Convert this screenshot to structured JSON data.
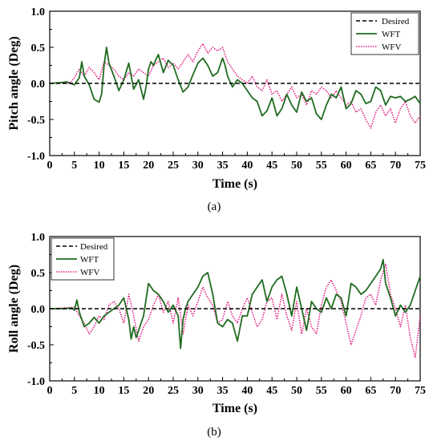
{
  "chart_data": [
    {
      "type": "line",
      "caption": "(a)",
      "xlabel": "Time (s)",
      "ylabel": "Pitch angle (Deg)",
      "xlim": [
        0,
        75
      ],
      "ylim": [
        -1.0,
        1.0
      ],
      "xticks": [
        "0",
        "5",
        "10",
        "15",
        "20",
        "25",
        "30",
        "35",
        "40",
        "45",
        "50",
        "55",
        "60",
        "65",
        "70",
        "75"
      ],
      "yticks": [
        "1.0",
        "0.5",
        "0.0",
        "-0.5",
        "-1.0"
      ],
      "grid": false,
      "legend_position": "top-right",
      "series": [
        {
          "name": "Desired",
          "color": "#000000",
          "style": "dashed",
          "x": [
            0,
            75
          ],
          "y": [
            0,
            0
          ]
        },
        {
          "name": "WFT",
          "color": "#1f6b1f",
          "style": "solid",
          "x": [
            0,
            2,
            3.5,
            5,
            6,
            6.5,
            7,
            8,
            9,
            10,
            10.5,
            11,
            11.5,
            12,
            13,
            14,
            15,
            16,
            17,
            18,
            19,
            19.5,
            20,
            20.5,
            21,
            21.5,
            22,
            23,
            24,
            25,
            26,
            27,
            28,
            29,
            30,
            31,
            32,
            33,
            34,
            35,
            35.5,
            36,
            37,
            38,
            39,
            40,
            41,
            42,
            43,
            44,
            45,
            46,
            47,
            48,
            49,
            50,
            51,
            52,
            53,
            54,
            55,
            56,
            57,
            58,
            59,
            60,
            61,
            62,
            63,
            64,
            65,
            66,
            67,
            68,
            69,
            70,
            71,
            72,
            73,
            74,
            75
          ],
          "y": [
            0,
            0.01,
            0.02,
            -0.02,
            0.08,
            0.3,
            0.1,
            -0.02,
            -0.22,
            -0.26,
            -0.15,
            0.25,
            0.5,
            0.28,
            0.1,
            -0.1,
            0.05,
            0.28,
            -0.08,
            0.05,
            -0.22,
            -0.05,
            0.2,
            0.3,
            0.25,
            0.33,
            0.4,
            0.15,
            0.32,
            0.25,
            0.05,
            -0.12,
            -0.05,
            0.12,
            0.28,
            0.35,
            0.25,
            0.1,
            0.15,
            0.35,
            0.25,
            0.1,
            -0.05,
            0.05,
            0.0,
            -0.1,
            -0.2,
            -0.25,
            -0.45,
            -0.38,
            -0.2,
            -0.45,
            -0.35,
            -0.15,
            -0.3,
            -0.4,
            -0.12,
            -0.25,
            -0.2,
            -0.42,
            -0.5,
            -0.3,
            -0.15,
            -0.2,
            -0.05,
            -0.35,
            -0.28,
            -0.1,
            -0.15,
            -0.28,
            -0.25,
            -0.05,
            -0.1,
            -0.3,
            -0.18,
            -0.2,
            -0.18,
            -0.25,
            -0.22,
            -0.18,
            -0.28
          ]
        },
        {
          "name": "WFV",
          "color": "#e0187e",
          "style": "dotted",
          "x": [
            0,
            2,
            4,
            5,
            6,
            7,
            8,
            9,
            10,
            11,
            12,
            13,
            14,
            15,
            16,
            17,
            18,
            19,
            20,
            21,
            22,
            23,
            24,
            25,
            26,
            27,
            28,
            29,
            30,
            31,
            32,
            33,
            34,
            35,
            36,
            37,
            38,
            39,
            40,
            41,
            42,
            43,
            44,
            45,
            46,
            47,
            48,
            49,
            50,
            51,
            52,
            53,
            54,
            55,
            56,
            57,
            58,
            59,
            60,
            61,
            62,
            63,
            64,
            65,
            66,
            67,
            68,
            69,
            70,
            71,
            72,
            73,
            74,
            75
          ],
          "y": [
            0,
            0.01,
            0.0,
            0.08,
            0.2,
            0.1,
            0.22,
            0.15,
            0.05,
            0.3,
            0.25,
            0.2,
            0.1,
            0.05,
            0.15,
            0.1,
            0.2,
            0.15,
            0.1,
            0.25,
            0.3,
            0.35,
            0.22,
            0.28,
            0.2,
            0.3,
            0.4,
            0.3,
            0.45,
            0.55,
            0.42,
            0.5,
            0.45,
            0.5,
            0.3,
            0.2,
            0.1,
            0.05,
            0.0,
            0.1,
            -0.05,
            -0.1,
            0.05,
            -0.15,
            -0.1,
            -0.25,
            -0.15,
            -0.05,
            -0.2,
            -0.15,
            -0.3,
            -0.1,
            -0.15,
            -0.05,
            -0.1,
            -0.2,
            -0.1,
            -0.2,
            -0.3,
            -0.25,
            -0.4,
            -0.35,
            -0.5,
            -0.62,
            -0.4,
            -0.3,
            -0.45,
            -0.35,
            -0.55,
            -0.35,
            -0.25,
            -0.45,
            -0.55,
            -0.45
          ]
        }
      ]
    },
    {
      "type": "line",
      "caption": "(b)",
      "xlabel": "Time (s)",
      "ylabel": "Roll angle (Deg)",
      "xlim": [
        0,
        75
      ],
      "ylim": [
        -1.0,
        1.0
      ],
      "xticks": [
        "0",
        "5",
        "10",
        "15",
        "20",
        "25",
        "30",
        "35",
        "40",
        "45",
        "50",
        "55",
        "60",
        "65",
        "70",
        "75"
      ],
      "yticks": [
        "1.0",
        "0.5",
        "0.0",
        "-0.5",
        "-1.0"
      ],
      "grid": false,
      "legend_position": "top-left",
      "series": [
        {
          "name": "Desired",
          "color": "#000000",
          "style": "dashed",
          "x": [
            0,
            75
          ],
          "y": [
            0,
            0
          ]
        },
        {
          "name": "WFT",
          "color": "#1f6b1f",
          "style": "solid",
          "x": [
            0,
            3,
            4.5,
            5,
            5.5,
            6,
            6.5,
            7,
            8,
            9,
            10,
            11,
            12,
            13,
            14,
            15,
            16,
            16.5,
            17,
            17.5,
            18,
            19,
            20,
            21,
            22,
            23,
            24,
            25,
            26,
            26.5,
            27,
            27.5,
            28,
            29,
            30,
            31,
            32,
            32.5,
            33,
            34,
            35,
            36,
            37,
            38,
            39,
            40,
            41,
            42,
            43,
            44,
            45,
            46,
            47,
            48,
            49,
            50,
            51,
            52,
            53,
            54,
            55,
            56,
            57,
            58,
            59,
            60,
            61,
            62,
            63,
            64,
            65,
            66,
            67,
            67.5,
            68,
            69,
            70,
            71,
            72,
            73,
            74,
            75
          ],
          "y": [
            0,
            0,
            0.01,
            -0.02,
            0.12,
            -0.05,
            -0.15,
            -0.25,
            -0.2,
            -0.12,
            -0.2,
            -0.1,
            -0.05,
            0.0,
            0.05,
            0.15,
            -0.15,
            -0.42,
            -0.25,
            -0.4,
            -0.3,
            -0.1,
            0.35,
            0.25,
            0.2,
            0.1,
            -0.05,
            0.05,
            -0.1,
            -0.55,
            -0.15,
            0.0,
            0.1,
            0.2,
            0.3,
            0.45,
            0.5,
            0.35,
            0.2,
            -0.2,
            -0.25,
            -0.15,
            -0.2,
            -0.45,
            -0.1,
            -0.1,
            0.2,
            0.3,
            0.4,
            0.1,
            0.3,
            0.4,
            0.45,
            0.2,
            -0.1,
            0.3,
            0.0,
            -0.3,
            0.1,
            0.0,
            -0.05,
            0.15,
            0.0,
            0.2,
            0.15,
            -0.1,
            0.35,
            0.3,
            0.2,
            0.25,
            0.35,
            0.45,
            0.55,
            0.68,
            0.35,
            0.15,
            -0.1,
            0.05,
            -0.05,
            0.05,
            0.25,
            0.45
          ]
        },
        {
          "name": "WFV",
          "color": "#e0187e",
          "style": "dotted",
          "x": [
            0,
            5,
            6,
            7,
            8,
            9,
            10,
            11,
            12,
            13,
            14,
            15,
            16,
            17,
            18,
            19,
            20,
            21,
            22,
            23,
            24,
            25,
            26,
            27,
            28,
            29,
            30,
            31,
            32,
            33,
            34,
            35,
            36,
            37,
            38,
            39,
            40,
            41,
            42,
            43,
            44,
            45,
            46,
            47,
            48,
            49,
            50,
            51,
            52,
            53,
            54,
            55,
            56,
            57,
            58,
            59,
            60,
            61,
            62,
            63,
            64,
            65,
            66,
            67,
            68,
            69,
            70,
            71,
            72,
            73,
            74,
            75
          ],
          "y": [
            0,
            0.02,
            -0.1,
            -0.2,
            -0.35,
            -0.25,
            -0.1,
            -0.15,
            0.05,
            0.1,
            0.0,
            -0.2,
            0.2,
            -0.1,
            -0.45,
            -0.25,
            -0.15,
            0.05,
            0.2,
            -0.05,
            0.1,
            -0.2,
            0.15,
            -0.35,
            0.05,
            -0.1,
            0.1,
            0.3,
            0.15,
            0.05,
            -0.2,
            -0.15,
            0.1,
            -0.1,
            -0.2,
            0.0,
            0.15,
            -0.05,
            -0.25,
            -0.15,
            0.1,
            0.15,
            -0.15,
            0.2,
            -0.1,
            -0.3,
            0.1,
            -0.35,
            0.0,
            -0.25,
            -0.35,
            0.05,
            0.3,
            0.4,
            0.25,
            0.1,
            -0.2,
            -0.5,
            -0.3,
            -0.1,
            0.15,
            0.2,
            0.05,
            0.4,
            0.62,
            0.2,
            0.0,
            -0.25,
            0.05,
            -0.4,
            -0.68,
            -0.1
          ]
        }
      ]
    }
  ]
}
